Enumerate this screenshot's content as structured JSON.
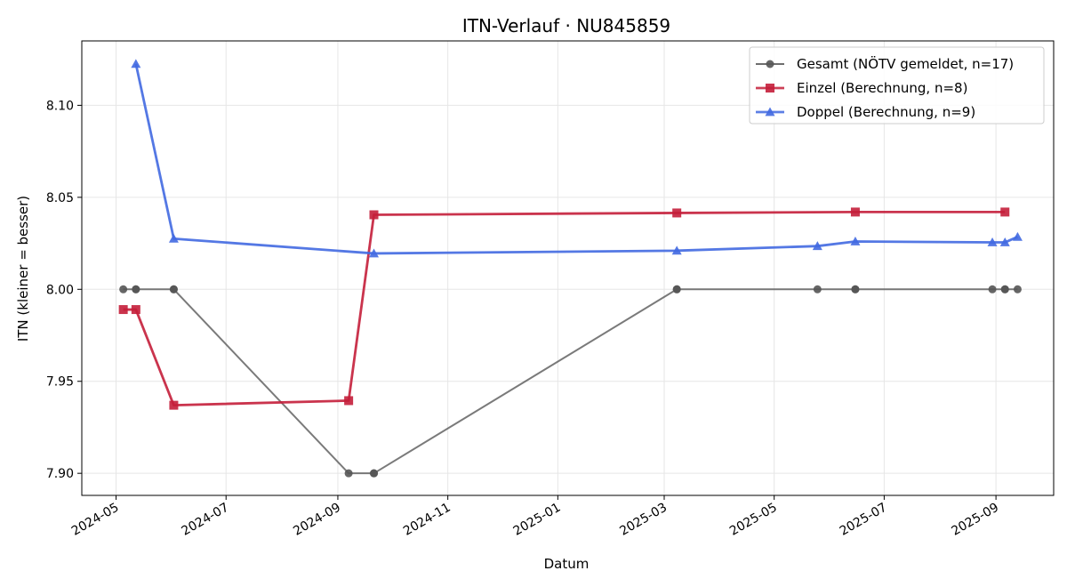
{
  "chart_data": {
    "type": "line",
    "title": "ITN-Verlauf · NU845859",
    "xlabel": "Datum",
    "ylabel": "ITN  (kleiner = besser)",
    "ylim": [
      7.888,
      8.135
    ],
    "xlim": [
      "2024-04-12",
      "2025-10-03"
    ],
    "yticks": [
      7.9,
      7.95,
      8.0,
      8.05,
      8.1
    ],
    "ytick_labels": [
      "7.90",
      "7.95",
      "8.00",
      "8.05",
      "8.10"
    ],
    "xticks": [
      "2024-05-01",
      "2024-07-01",
      "2024-09-01",
      "2024-11-01",
      "2025-01-01",
      "2025-03-01",
      "2025-05-01",
      "2025-07-01",
      "2025-09-01"
    ],
    "xtick_labels": [
      "2024-05",
      "2024-07",
      "2024-09",
      "2024-11",
      "2025-01",
      "2025-03",
      "2025-05",
      "2025-07",
      "2025-09"
    ],
    "grid": true,
    "legend_position": "top-right",
    "series": [
      {
        "name": "Gesamt (NÖTV gemeldet, n=17)",
        "color": "#555555",
        "marker": "circle",
        "points": [
          {
            "x": "2024-05-05",
            "y": 8.0
          },
          {
            "x": "2024-05-12",
            "y": 8.0
          },
          {
            "x": "2024-05-12",
            "y": 8.0
          },
          {
            "x": "2024-06-02",
            "y": 8.0
          },
          {
            "x": "2024-06-02",
            "y": 8.0
          },
          {
            "x": "2024-09-07",
            "y": 7.9
          },
          {
            "x": "2024-09-21",
            "y": 7.9
          },
          {
            "x": "2024-09-21",
            "y": 7.9
          },
          {
            "x": "2025-03-08",
            "y": 8.0
          },
          {
            "x": "2025-03-08",
            "y": 8.0
          },
          {
            "x": "2025-05-25",
            "y": 8.0
          },
          {
            "x": "2025-06-15",
            "y": 8.0
          },
          {
            "x": "2025-06-15",
            "y": 8.0
          },
          {
            "x": "2025-08-30",
            "y": 8.0
          },
          {
            "x": "2025-09-06",
            "y": 8.0
          },
          {
            "x": "2025-09-06",
            "y": 8.0
          },
          {
            "x": "2025-09-13",
            "y": 8.0
          }
        ]
      },
      {
        "name": "Einzel (Berechnung, n=8)",
        "color": "#c41e3a",
        "marker": "square",
        "points": [
          {
            "x": "2024-05-05",
            "y": 7.989
          },
          {
            "x": "2024-05-12",
            "y": 7.989
          },
          {
            "x": "2024-06-02",
            "y": 7.937
          },
          {
            "x": "2024-09-07",
            "y": 7.9395
          },
          {
            "x": "2024-09-21",
            "y": 8.0405
          },
          {
            "x": "2025-03-08",
            "y": 8.0415
          },
          {
            "x": "2025-06-15",
            "y": 8.042
          },
          {
            "x": "2025-09-06",
            "y": 8.042
          }
        ]
      },
      {
        "name": "Doppel (Berechnung, n=9)",
        "color": "#4169e1",
        "marker": "triangle",
        "points": [
          {
            "x": "2024-05-12",
            "y": 8.1225
          },
          {
            "x": "2024-06-02",
            "y": 8.0275
          },
          {
            "x": "2024-09-21",
            "y": 8.0195
          },
          {
            "x": "2025-03-08",
            "y": 8.021
          },
          {
            "x": "2025-05-25",
            "y": 8.0235
          },
          {
            "x": "2025-06-15",
            "y": 8.026
          },
          {
            "x": "2025-08-30",
            "y": 8.0255
          },
          {
            "x": "2025-09-06",
            "y": 8.0255
          },
          {
            "x": "2025-09-13",
            "y": 8.0285
          }
        ]
      }
    ]
  }
}
